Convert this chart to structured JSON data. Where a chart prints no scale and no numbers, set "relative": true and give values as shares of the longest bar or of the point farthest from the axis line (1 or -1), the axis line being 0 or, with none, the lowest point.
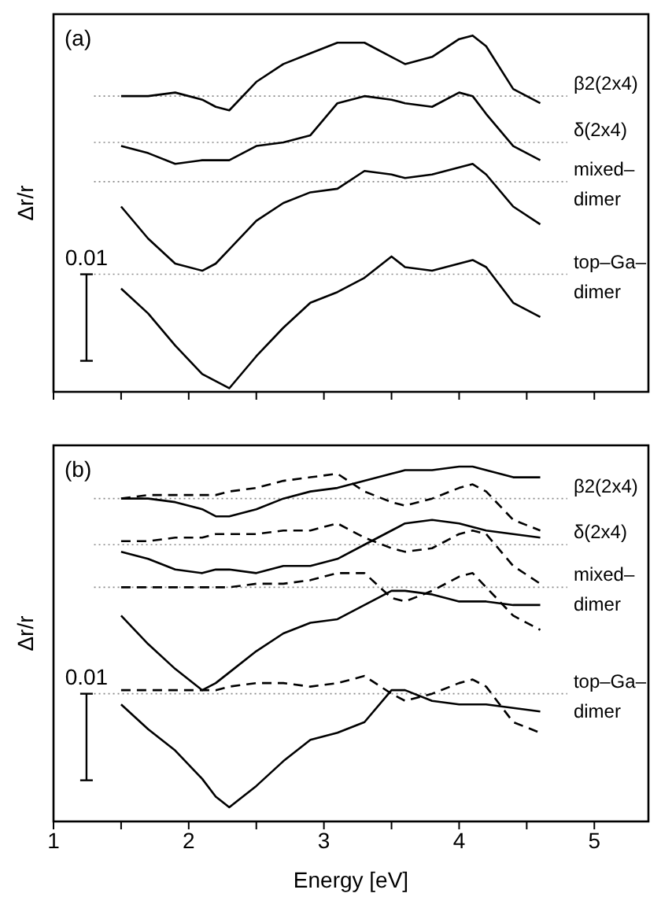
{
  "chart_data": [
    {
      "type": "line",
      "relative": true,
      "ylabel": "Δr/r",
      "tick_labels": false,
      "annotations": [
        "(a)",
        "0.01"
      ],
      "xlim": [
        1,
        5.4
      ],
      "xticks": [
        1,
        {
          "value": 1.5,
          "label": null
        },
        2,
        {
          "value": 2.5,
          "label": null
        },
        3,
        {
          "value": 3.5,
          "label": null
        },
        4,
        {
          "value": 4.5,
          "label": null
        },
        5
      ],
      "x": [
        1.5,
        1.7,
        1.9,
        2.1,
        2.2,
        2.3,
        2.5,
        2.7,
        2.9,
        3.1,
        3.3,
        3.5,
        3.6,
        3.8,
        4.0,
        4.1,
        4.2,
        4.4,
        4.6
      ],
      "series": [
        {
          "color": "#000000",
          "values": [
            0.83,
            0.83,
            0.84,
            0.82,
            0.8,
            0.79,
            0.87,
            0.92,
            0.95,
            0.98,
            0.98,
            0.94,
            0.92,
            0.94,
            0.99,
            1,
            0.97,
            0.85,
            0.81
          ]
        },
        {
          "color": "#000000",
          "values": [
            0.69,
            0.67,
            0.64,
            0.65,
            0.65,
            0.65,
            0.69,
            0.7,
            0.72,
            0.81,
            0.83,
            0.82,
            0.81,
            0.8,
            0.84,
            0.83,
            0.78,
            0.69,
            0.65
          ]
        },
        {
          "color": "#000000",
          "values": [
            0.52,
            0.43,
            0.36,
            0.34,
            0.36,
            0.4,
            0.48,
            0.53,
            0.56,
            0.57,
            0.62,
            0.61,
            0.6,
            0.61,
            0.63,
            0.64,
            0.61,
            0.52,
            0.47
          ]
        },
        {
          "color": "#000000",
          "values": [
            0.29,
            0.22,
            0.13,
            0.05,
            0.03,
            0.01,
            0.1,
            0.18,
            0.25,
            0.28,
            0.32,
            0.38,
            0.35,
            0.34,
            0.36,
            0.37,
            0.35,
            0.25,
            0.21
          ]
        }
      ],
      "ref_lines": [
        {
          "axis": "y",
          "value": 0.83,
          "label": "β2(2x4)",
          "color": "#888888",
          "line_style": "dotted"
        },
        {
          "axis": "y",
          "value": 0.7,
          "label": "δ(2x4)",
          "color": "#888888",
          "line_style": "dotted"
        },
        {
          "axis": "y",
          "value": 0.59,
          "label": "mixed–dimer",
          "color": "#888888",
          "line_style": "dotted"
        },
        {
          "axis": "y",
          "value": 0.33,
          "label": "top–Ga–dimer",
          "color": "#888888",
          "line_style": "dotted"
        }
      ]
    },
    {
      "type": "line",
      "relative": true,
      "ylabel": "Δr/r",
      "xlabel": "Energy [eV]",
      "tick_labels": "x",
      "annotations": [
        "(b)",
        "0.01"
      ],
      "xlim": [
        1,
        5.4
      ],
      "xticks": [
        1,
        {
          "value": 1.5,
          "label": null
        },
        2,
        {
          "value": 2.5,
          "label": null
        },
        3,
        {
          "value": 3.5,
          "label": null
        },
        4,
        {
          "value": 4.5,
          "label": null
        },
        5
      ],
      "x": [
        1.5,
        1.7,
        1.9,
        2.1,
        2.2,
        2.3,
        2.5,
        2.7,
        2.9,
        3.1,
        3.3,
        3.5,
        3.6,
        3.8,
        4.0,
        4.1,
        4.2,
        4.4,
        4.6
      ],
      "series": [
        {
          "color": "#000000",
          "values": [
            0.91,
            0.91,
            0.9,
            0.88,
            0.86,
            0.86,
            0.88,
            0.91,
            0.93,
            0.94,
            0.96,
            0.98,
            0.99,
            0.99,
            1,
            1,
            0.99,
            0.97,
            0.97
          ]
        },
        {
          "color": "#000000",
          "line_style": "dashed",
          "values": [
            0.91,
            0.92,
            0.92,
            0.92,
            0.92,
            0.93,
            0.94,
            0.96,
            0.97,
            0.98,
            0.93,
            0.9,
            0.89,
            0.91,
            0.94,
            0.95,
            0.93,
            0.85,
            0.82
          ]
        },
        {
          "color": "#000000",
          "values": [
            0.76,
            0.74,
            0.71,
            0.7,
            0.71,
            0.71,
            0.7,
            0.72,
            0.72,
            0.74,
            0.78,
            0.82,
            0.84,
            0.85,
            0.84,
            0.83,
            0.82,
            0.81,
            0.8
          ]
        },
        {
          "color": "#000000",
          "line_style": "dashed",
          "values": [
            0.79,
            0.79,
            0.8,
            0.8,
            0.81,
            0.81,
            0.81,
            0.82,
            0.82,
            0.84,
            0.8,
            0.77,
            0.76,
            0.77,
            0.81,
            0.82,
            0.81,
            0.72,
            0.67
          ]
        },
        {
          "color": "#000000",
          "values": [
            0.58,
            0.5,
            0.43,
            0.37,
            0.39,
            0.42,
            0.48,
            0.53,
            0.56,
            0.57,
            0.61,
            0.65,
            0.65,
            0.64,
            0.62,
            0.62,
            0.62,
            0.61,
            0.61
          ]
        },
        {
          "color": "#000000",
          "line_style": "dashed",
          "values": [
            0.66,
            0.66,
            0.66,
            0.66,
            0.66,
            0.66,
            0.67,
            0.67,
            0.68,
            0.7,
            0.7,
            0.63,
            0.62,
            0.65,
            0.69,
            0.7,
            0.66,
            0.58,
            0.54
          ]
        },
        {
          "color": "#000000",
          "values": [
            0.33,
            0.26,
            0.2,
            0.12,
            0.07,
            0.04,
            0.1,
            0.17,
            0.23,
            0.25,
            0.28,
            0.37,
            0.37,
            0.34,
            0.33,
            0.33,
            0.33,
            0.32,
            0.31
          ]
        },
        {
          "color": "#000000",
          "line_style": "dashed",
          "values": [
            0.37,
            0.37,
            0.37,
            0.37,
            0.37,
            0.38,
            0.39,
            0.39,
            0.38,
            0.39,
            0.41,
            0.36,
            0.34,
            0.36,
            0.39,
            0.4,
            0.38,
            0.28,
            0.25
          ]
        }
      ],
      "ref_lines": [
        {
          "axis": "y",
          "value": 0.91,
          "label": "β2(2x4)",
          "color": "#888888",
          "line_style": "dotted"
        },
        {
          "axis": "y",
          "value": 0.78,
          "label": "δ(2x4)",
          "color": "#888888",
          "line_style": "dotted"
        },
        {
          "axis": "y",
          "value": 0.66,
          "label": "mixed–dimer",
          "color": "#888888",
          "line_style": "dotted"
        },
        {
          "axis": "y",
          "value": 0.36,
          "label": "top–Ga–dimer",
          "color": "#888888",
          "line_style": "dotted"
        }
      ]
    }
  ]
}
